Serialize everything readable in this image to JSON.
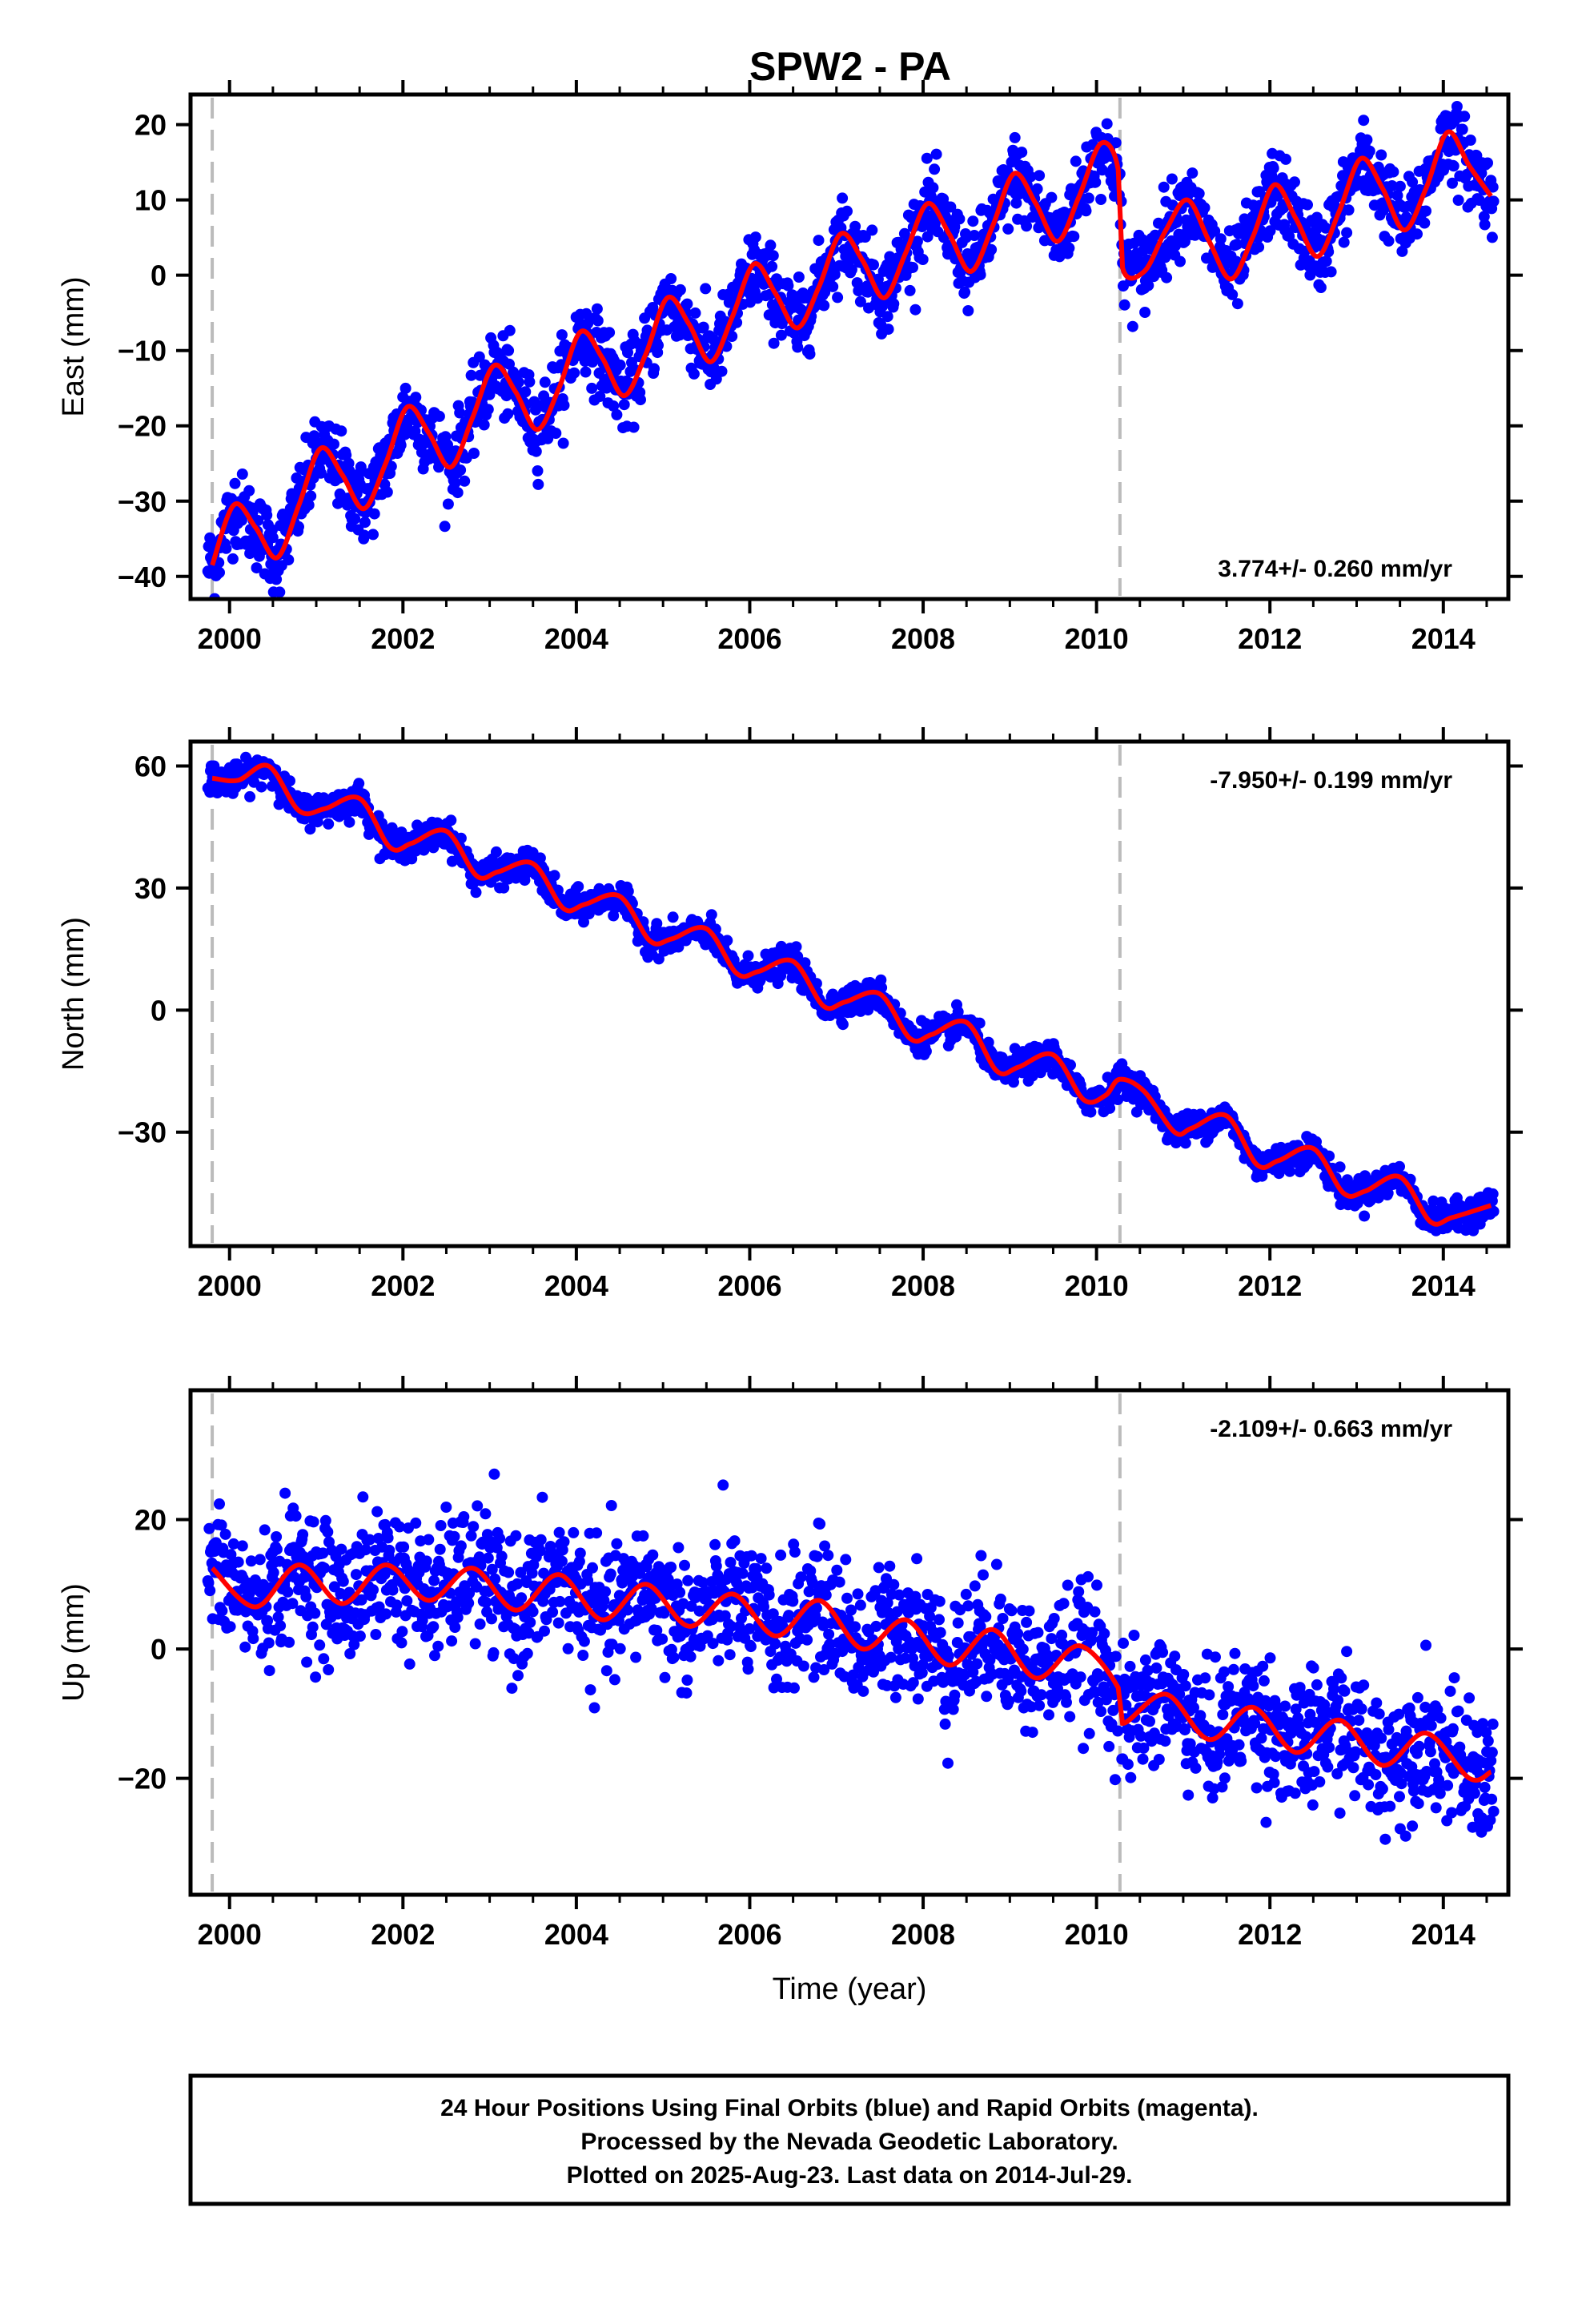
{
  "figure": {
    "title": "SPW2 - PA",
    "footer_lines": [
      "24 Hour Positions Using Final Orbits (blue) and Rapid Orbits (magenta).",
      "Processed by the Nevada Geodetic Laboratory.",
      "Plotted on 2025-Aug-23. Last data on 2014-Jul-29."
    ],
    "colors": {
      "final_orbits": "#0000ff",
      "model": "#ff0000",
      "break_line": "#bbbbbb",
      "frame": "#000000"
    }
  },
  "chart_data": [
    {
      "type": "scatter",
      "ylabel": "East (mm)",
      "xlabel": "",
      "rate_label": "3.774+/- 0.260 mm/yr",
      "xlim": [
        1999.55,
        2014.75
      ],
      "ylim": [
        -43,
        24
      ],
      "xticks": [
        2000,
        2002,
        2004,
        2006,
        2008,
        2010,
        2012,
        2014
      ],
      "yticks": [
        -40,
        -30,
        -20,
        -10,
        0,
        10,
        20
      ],
      "breaks": [
        1999.8,
        2010.27
      ],
      "model": {
        "x": [
          1999.8,
          2000.05,
          2000.3,
          2000.55,
          2000.8,
          2001.05,
          2001.3,
          2001.55,
          2001.8,
          2002.05,
          2002.3,
          2002.55,
          2002.8,
          2003.05,
          2003.3,
          2003.55,
          2003.8,
          2004.05,
          2004.3,
          2004.55,
          2004.8,
          2005.05,
          2005.3,
          2005.55,
          2005.8,
          2006.05,
          2006.3,
          2006.55,
          2006.8,
          2007.05,
          2007.3,
          2007.55,
          2007.8,
          2008.05,
          2008.3,
          2008.55,
          2008.8,
          2009.05,
          2009.3,
          2009.55,
          2009.8,
          2010.05,
          2010.25,
          2010.3,
          2010.55,
          2010.8,
          2011.05,
          2011.3,
          2011.55,
          2011.8,
          2012.05,
          2012.3,
          2012.55,
          2012.8,
          2013.05,
          2013.3,
          2013.55,
          2013.8,
          2014.05,
          2014.3,
          2014.55
        ],
        "y": [
          -38.5,
          -30.5,
          -33.5,
          -37.5,
          -30.5,
          -23,
          -26.5,
          -31,
          -25,
          -17.5,
          -21,
          -25.5,
          -19,
          -12,
          -15.5,
          -20.5,
          -15,
          -7.5,
          -11,
          -16,
          -10.5,
          -3,
          -6.5,
          -11.5,
          -5.5,
          1.5,
          -2.5,
          -7,
          -1.5,
          5.5,
          2,
          -3,
          3,
          9.5,
          5.5,
          0.5,
          6.5,
          13.5,
          9.5,
          4.5,
          10.5,
          17.5,
          14,
          1,
          0.5,
          6,
          10,
          4.5,
          -0.5,
          5,
          12,
          7.5,
          2.5,
          8.5,
          15.5,
          11.5,
          6,
          11.5,
          19,
          14.5,
          10.5
        ]
      },
      "points": {
        "x_start": 1999.75,
        "x_end": 2014.58,
        "scatter_mm": 2.6,
        "rapid_orbit_points": []
      }
    },
    {
      "type": "scatter",
      "ylabel": "North (mm)",
      "xlabel": "",
      "rate_label": "-7.950+/- 0.199 mm/yr",
      "xlim": [
        1999.55,
        2014.75
      ],
      "ylim": [
        -58,
        66
      ],
      "xticks": [
        2000,
        2002,
        2004,
        2006,
        2008,
        2010,
        2012,
        2014
      ],
      "yticks": [
        -30,
        0,
        30,
        60
      ],
      "breaks": [
        1999.8,
        2010.27
      ],
      "model": {
        "x": [
          1999.8,
          2000.1,
          2000.45,
          2000.8,
          2001.1,
          2001.5,
          2001.85,
          2002.1,
          2002.5,
          2002.85,
          2003.1,
          2003.5,
          2003.85,
          2004.1,
          2004.5,
          2004.85,
          2005.1,
          2005.5,
          2005.85,
          2006.1,
          2006.5,
          2006.85,
          2007.1,
          2007.5,
          2007.85,
          2008.1,
          2008.5,
          2008.85,
          2009.1,
          2009.5,
          2009.85,
          2010.1,
          2010.27,
          2010.55,
          2010.9,
          2011.1,
          2011.5,
          2011.85,
          2012.1,
          2012.5,
          2012.85,
          2013.1,
          2013.5,
          2013.85,
          2014.1,
          2014.55
        ],
        "y": [
          57,
          56.5,
          60,
          49,
          49.5,
          52,
          40,
          41,
          44,
          33,
          34,
          36,
          25,
          26,
          28,
          17,
          17.5,
          20,
          9,
          9.5,
          12,
          1,
          2,
          4,
          -7,
          -6,
          -3,
          -15,
          -14,
          -11,
          -22,
          -21,
          -17,
          -20,
          -30,
          -29,
          -26,
          -38,
          -37,
          -34,
          -45,
          -44.5,
          -41,
          -52,
          -51,
          -48
        ]
      },
      "points": {
        "x_start": 1999.75,
        "x_end": 2014.58,
        "scatter_mm": 1.8,
        "rapid_orbit_points": []
      }
    },
    {
      "type": "scatter",
      "ylabel": "Up (mm)",
      "xlabel": "Time (year)",
      "rate_label": "-2.109+/- 0.663 mm/yr",
      "xlim": [
        1999.55,
        2014.75
      ],
      "ylim": [
        -38,
        40
      ],
      "xticks": [
        2000,
        2002,
        2004,
        2006,
        2008,
        2010,
        2012,
        2014
      ],
      "yticks": [
        -20,
        0,
        20
      ],
      "breaks": [
        1999.8,
        2010.27
      ],
      "model": {
        "x": [
          1999.8,
          2000.3,
          2000.8,
          2001.3,
          2001.8,
          2002.3,
          2002.8,
          2003.3,
          2003.8,
          2004.3,
          2004.8,
          2005.3,
          2005.8,
          2006.3,
          2006.8,
          2007.3,
          2007.8,
          2008.3,
          2008.8,
          2009.3,
          2009.8,
          2010.25,
          2010.3,
          2010.8,
          2011.3,
          2011.8,
          2012.3,
          2012.8,
          2013.3,
          2013.8,
          2014.3,
          2014.55
        ],
        "y": [
          12.5,
          6.5,
          13,
          7,
          13,
          7.5,
          12.5,
          6,
          11.5,
          4.5,
          10,
          3.5,
          8.5,
          2,
          7.5,
          0,
          4.5,
          -2.5,
          3,
          -4.5,
          0.5,
          -6,
          -11.5,
          -7,
          -14,
          -9,
          -16,
          -11,
          -18,
          -13,
          -20,
          -19
        ]
      },
      "points": {
        "x_start": 1999.75,
        "x_end": 2014.58,
        "scatter_mm": 5.0,
        "rapid_orbit_points": []
      }
    }
  ]
}
